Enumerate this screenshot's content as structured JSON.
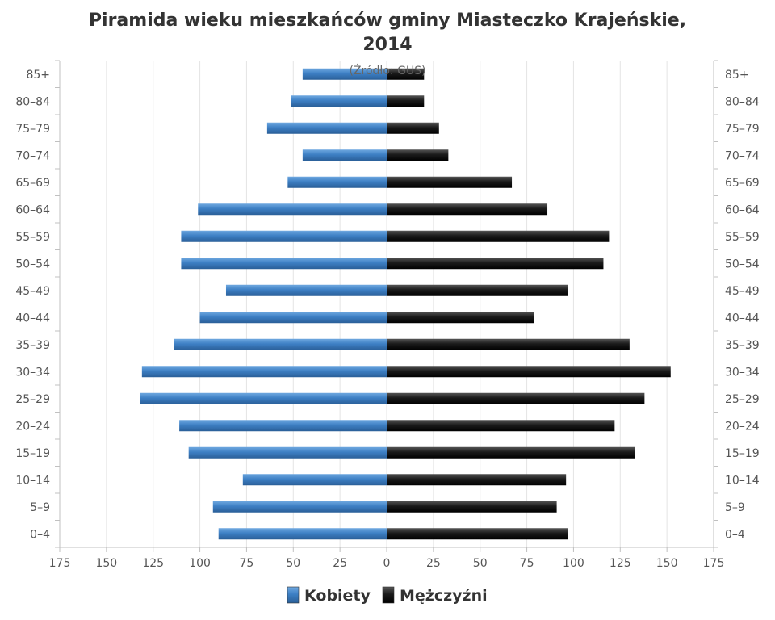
{
  "chart_data": {
    "type": "bar",
    "orientation": "horizontal",
    "layout": "population-pyramid",
    "title_lines": [
      "Piramida wieku mieszkańców gminy Miasteczko Krajeńskie,",
      "2014"
    ],
    "subtitle": "(Źródło: GUS)",
    "categories": [
      "0–4",
      "5–9",
      "10–14",
      "15–19",
      "20–24",
      "25–29",
      "30–34",
      "35–39",
      "40–44",
      "45–49",
      "50–54",
      "55–59",
      "60–64",
      "65–69",
      "70–74",
      "75–79",
      "80–84",
      "85+"
    ],
    "series": [
      {
        "name": "Kobiety",
        "side": "left",
        "color": "#3d7fc4",
        "values": [
          90,
          93,
          77,
          106,
          111,
          132,
          131,
          114,
          100,
          86,
          110,
          110,
          101,
          53,
          45,
          64,
          51,
          45
        ]
      },
      {
        "name": "Mężczyźni",
        "side": "right",
        "color": "#1a1a1a",
        "values": [
          97,
          91,
          96,
          133,
          122,
          138,
          152,
          130,
          79,
          97,
          116,
          119,
          86,
          67,
          33,
          28,
          20,
          20
        ]
      }
    ],
    "xlim": [
      -175,
      175
    ],
    "xticks": [
      "175",
      "150",
      "125",
      "100",
      "75",
      "50",
      "25",
      "0",
      "25",
      "50",
      "75",
      "100",
      "125",
      "150",
      "175"
    ],
    "grid": true,
    "legend_position": "bottom"
  }
}
